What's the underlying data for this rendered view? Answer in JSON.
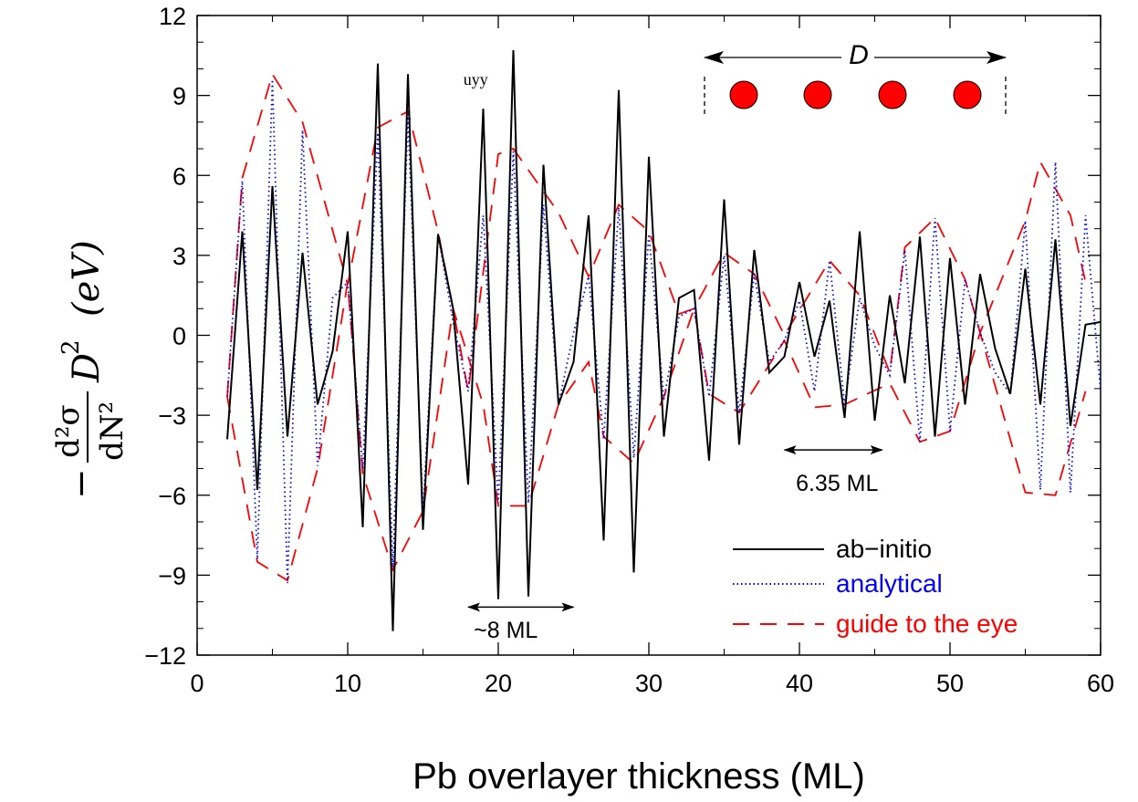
{
  "chart_data": {
    "type": "line",
    "xlabel": "Pb overlayer thickness (ML)",
    "ylabel": {
      "prefix": "−",
      "numerator": "d²σ",
      "denominator": "dN²",
      "factor": "D",
      "factor_exp": "2",
      "unit": "(eV)"
    },
    "xlim": [
      0,
      60
    ],
    "ylim": [
      -12,
      12
    ],
    "x_ticks": [
      0,
      10,
      20,
      30,
      40,
      50,
      60
    ],
    "x_tick_labels": [
      "0",
      "10",
      "20",
      "30",
      "40",
      "50",
      "60"
    ],
    "y_ticks": [
      12,
      9,
      6,
      3,
      0,
      -3,
      -6,
      -9,
      -12
    ],
    "y_tick_labels": [
      "12",
      "9",
      "6",
      "3",
      "0",
      "−3",
      "−6",
      "−9",
      "−12"
    ],
    "grid": false,
    "legend_position": "bottom-right",
    "series": [
      {
        "name": "ab−initio",
        "color": "#000000",
        "style": "solid",
        "points": [
          [
            2,
            -3.9
          ],
          [
            3,
            3.9
          ],
          [
            4,
            -5.8
          ],
          [
            5,
            5.6
          ],
          [
            6,
            -3.8
          ],
          [
            7,
            3.1
          ],
          [
            8,
            -2.6
          ],
          [
            9,
            -0.6
          ],
          [
            10,
            3.9
          ],
          [
            11,
            -7.2
          ],
          [
            12,
            10.2
          ],
          [
            13,
            -11.1
          ],
          [
            14,
            9.8
          ],
          [
            15,
            -7.3
          ],
          [
            16,
            3.8
          ],
          [
            17,
            1.0
          ],
          [
            18,
            -5.6
          ],
          [
            19,
            8.5
          ],
          [
            20,
            -9.9
          ],
          [
            21,
            10.7
          ],
          [
            22,
            -9.8
          ],
          [
            23,
            6.4
          ],
          [
            24,
            -2.6
          ],
          [
            25,
            -1.0
          ],
          [
            26,
            4.5
          ],
          [
            27,
            -7.7
          ],
          [
            28,
            9.2
          ],
          [
            29,
            -8.9
          ],
          [
            30,
            6.7
          ],
          [
            31,
            -3.8
          ],
          [
            32,
            1.4
          ],
          [
            33,
            1.7
          ],
          [
            34,
            -4.7
          ],
          [
            35,
            5.1
          ],
          [
            36,
            -4.1
          ],
          [
            37,
            3.2
          ],
          [
            38,
            -1.4
          ],
          [
            39,
            -0.8
          ],
          [
            40,
            2.0
          ],
          [
            41,
            -0.8
          ],
          [
            42,
            1.3
          ],
          [
            43,
            -3.1
          ],
          [
            44,
            3.9
          ],
          [
            45,
            -3.2
          ],
          [
            46,
            1.5
          ],
          [
            47,
            -1.8
          ],
          [
            48,
            3.7
          ],
          [
            49,
            -3.8
          ],
          [
            50,
            2.9
          ],
          [
            51,
            -2.6
          ],
          [
            52,
            2.3
          ],
          [
            53,
            -0.5
          ],
          [
            54,
            -2.2
          ],
          [
            55,
            2.5
          ],
          [
            56,
            -2.6
          ],
          [
            57,
            3.6
          ],
          [
            58,
            -3.4
          ],
          [
            59,
            0.4
          ],
          [
            60,
            0.5
          ]
        ]
      },
      {
        "name": "analytical",
        "color": "#0000ff",
        "style": "dotted",
        "points": [
          [
            2,
            -2.3
          ],
          [
            3,
            5.8
          ],
          [
            4,
            -8.4
          ],
          [
            5,
            9.6
          ],
          [
            6,
            -9.3
          ],
          [
            7,
            7.7
          ],
          [
            8,
            -4.9
          ],
          [
            9,
            1.4
          ],
          [
            10,
            2.0
          ],
          [
            11,
            -5.0
          ],
          [
            12,
            7.6
          ],
          [
            13,
            -8.7
          ],
          [
            14,
            8.3
          ],
          [
            15,
            -6.6
          ],
          [
            16,
            3.8
          ],
          [
            17,
            0.5
          ],
          [
            18,
            -2.1
          ],
          [
            19,
            4.5
          ],
          [
            20,
            -6.3
          ],
          [
            21,
            6.9
          ],
          [
            22,
            -6.3
          ],
          [
            23,
            4.9
          ],
          [
            24,
            -2.6
          ],
          [
            25,
            0.1
          ],
          [
            26,
            2.2
          ],
          [
            27,
            -3.9
          ],
          [
            28,
            4.8
          ],
          [
            29,
            -4.6
          ],
          [
            30,
            3.8
          ],
          [
            31,
            -2.4
          ],
          [
            32,
            0.7
          ],
          [
            33,
            1.0
          ],
          [
            34,
            -2.3
          ],
          [
            35,
            3.0
          ],
          [
            36,
            -2.9
          ],
          [
            37,
            2.3
          ],
          [
            38,
            -1.0
          ],
          [
            39,
            -0.2
          ],
          [
            40,
            1.3
          ],
          [
            41,
            -2.1
          ],
          [
            42,
            2.8
          ],
          [
            43,
            -2.6
          ],
          [
            44,
            1.4
          ],
          [
            45,
            -0.4
          ],
          [
            46,
            -1.5
          ],
          [
            47,
            3.2
          ],
          [
            48,
            -4.0
          ],
          [
            49,
            4.4
          ],
          [
            50,
            -3.6
          ],
          [
            51,
            2.1
          ],
          [
            52,
            0.1
          ],
          [
            53,
            -1.4
          ],
          [
            54,
            -2.2
          ],
          [
            55,
            4.3
          ],
          [
            56,
            -5.8
          ],
          [
            57,
            6.5
          ],
          [
            58,
            -5.9
          ],
          [
            59,
            4.5
          ],
          [
            60,
            -2.1
          ]
        ]
      },
      {
        "name": "guide to the eye",
        "color": "#ff0000",
        "style": "dashed",
        "paths": [
          [
            [
              2,
              -2.3
            ],
            [
              3,
              5.9
            ],
            [
              5,
              9.8
            ],
            [
              7,
              8.0
            ],
            [
              10,
              1.9
            ],
            [
              12,
              7.8
            ],
            [
              14,
              8.4
            ],
            [
              16,
              3.9
            ],
            [
              17,
              1.0
            ],
            [
              18,
              -2.1
            ],
            [
              20,
              6.8
            ],
            [
              21,
              7.0
            ],
            [
              24,
              4.6
            ],
            [
              26,
              2.2
            ],
            [
              28,
              4.9
            ],
            [
              30,
              3.9
            ],
            [
              32,
              0.8
            ],
            [
              33,
              1.0
            ],
            [
              35,
              3.1
            ],
            [
              37,
              2.3
            ],
            [
              39,
              0.0
            ],
            [
              42,
              2.8
            ],
            [
              44,
              1.5
            ],
            [
              46,
              -1.4
            ],
            [
              47,
              3.3
            ],
            [
              49,
              4.4
            ],
            [
              51,
              2.1
            ],
            [
              52,
              0.1
            ],
            [
              55,
              4.3
            ],
            [
              56,
              6.5
            ],
            [
              58,
              4.5
            ],
            [
              59,
              2.0
            ]
          ],
          [
            [
              2,
              -2.3
            ],
            [
              4,
              -8.5
            ],
            [
              6,
              -9.2
            ],
            [
              8,
              -5.0
            ],
            [
              10,
              2.0
            ],
            [
              11,
              -5.2
            ],
            [
              13,
              -8.8
            ],
            [
              15,
              -6.6
            ],
            [
              17,
              1.0
            ],
            [
              19,
              -2.6
            ],
            [
              20,
              -6.4
            ],
            [
              22,
              -6.4
            ],
            [
              24,
              -2.6
            ],
            [
              26,
              -1.0
            ],
            [
              27,
              -3.8
            ],
            [
              29,
              -4.8
            ],
            [
              31,
              -2.3
            ],
            [
              33,
              1.0
            ],
            [
              34,
              -2.2
            ],
            [
              36,
              -2.9
            ],
            [
              39,
              -0.2
            ],
            [
              41,
              -2.7
            ],
            [
              43,
              -2.6
            ],
            [
              46,
              -1.8
            ],
            [
              48,
              -4.0
            ],
            [
              50,
              -3.6
            ],
            [
              52,
              0.1
            ],
            [
              55,
              -5.9
            ],
            [
              57,
              -6.0
            ],
            [
              59,
              -2.1
            ]
          ]
        ]
      }
    ],
    "annotations": [
      {
        "text": "~8 ML",
        "x": 20.5,
        "y": -11.0,
        "arrow_from": 18,
        "arrow_to": 25,
        "arrow_y": -10.2
      },
      {
        "text": "6.35 ML",
        "x": 42.5,
        "y": -5.5,
        "arrow_from": 39,
        "arrow_to": 45.5,
        "arrow_y": -4.3
      },
      {
        "text": "uyy",
        "x": 18.5,
        "y": 9.6
      },
      {
        "text": "D",
        "inset": "spaced atoms schematic"
      }
    ]
  }
}
